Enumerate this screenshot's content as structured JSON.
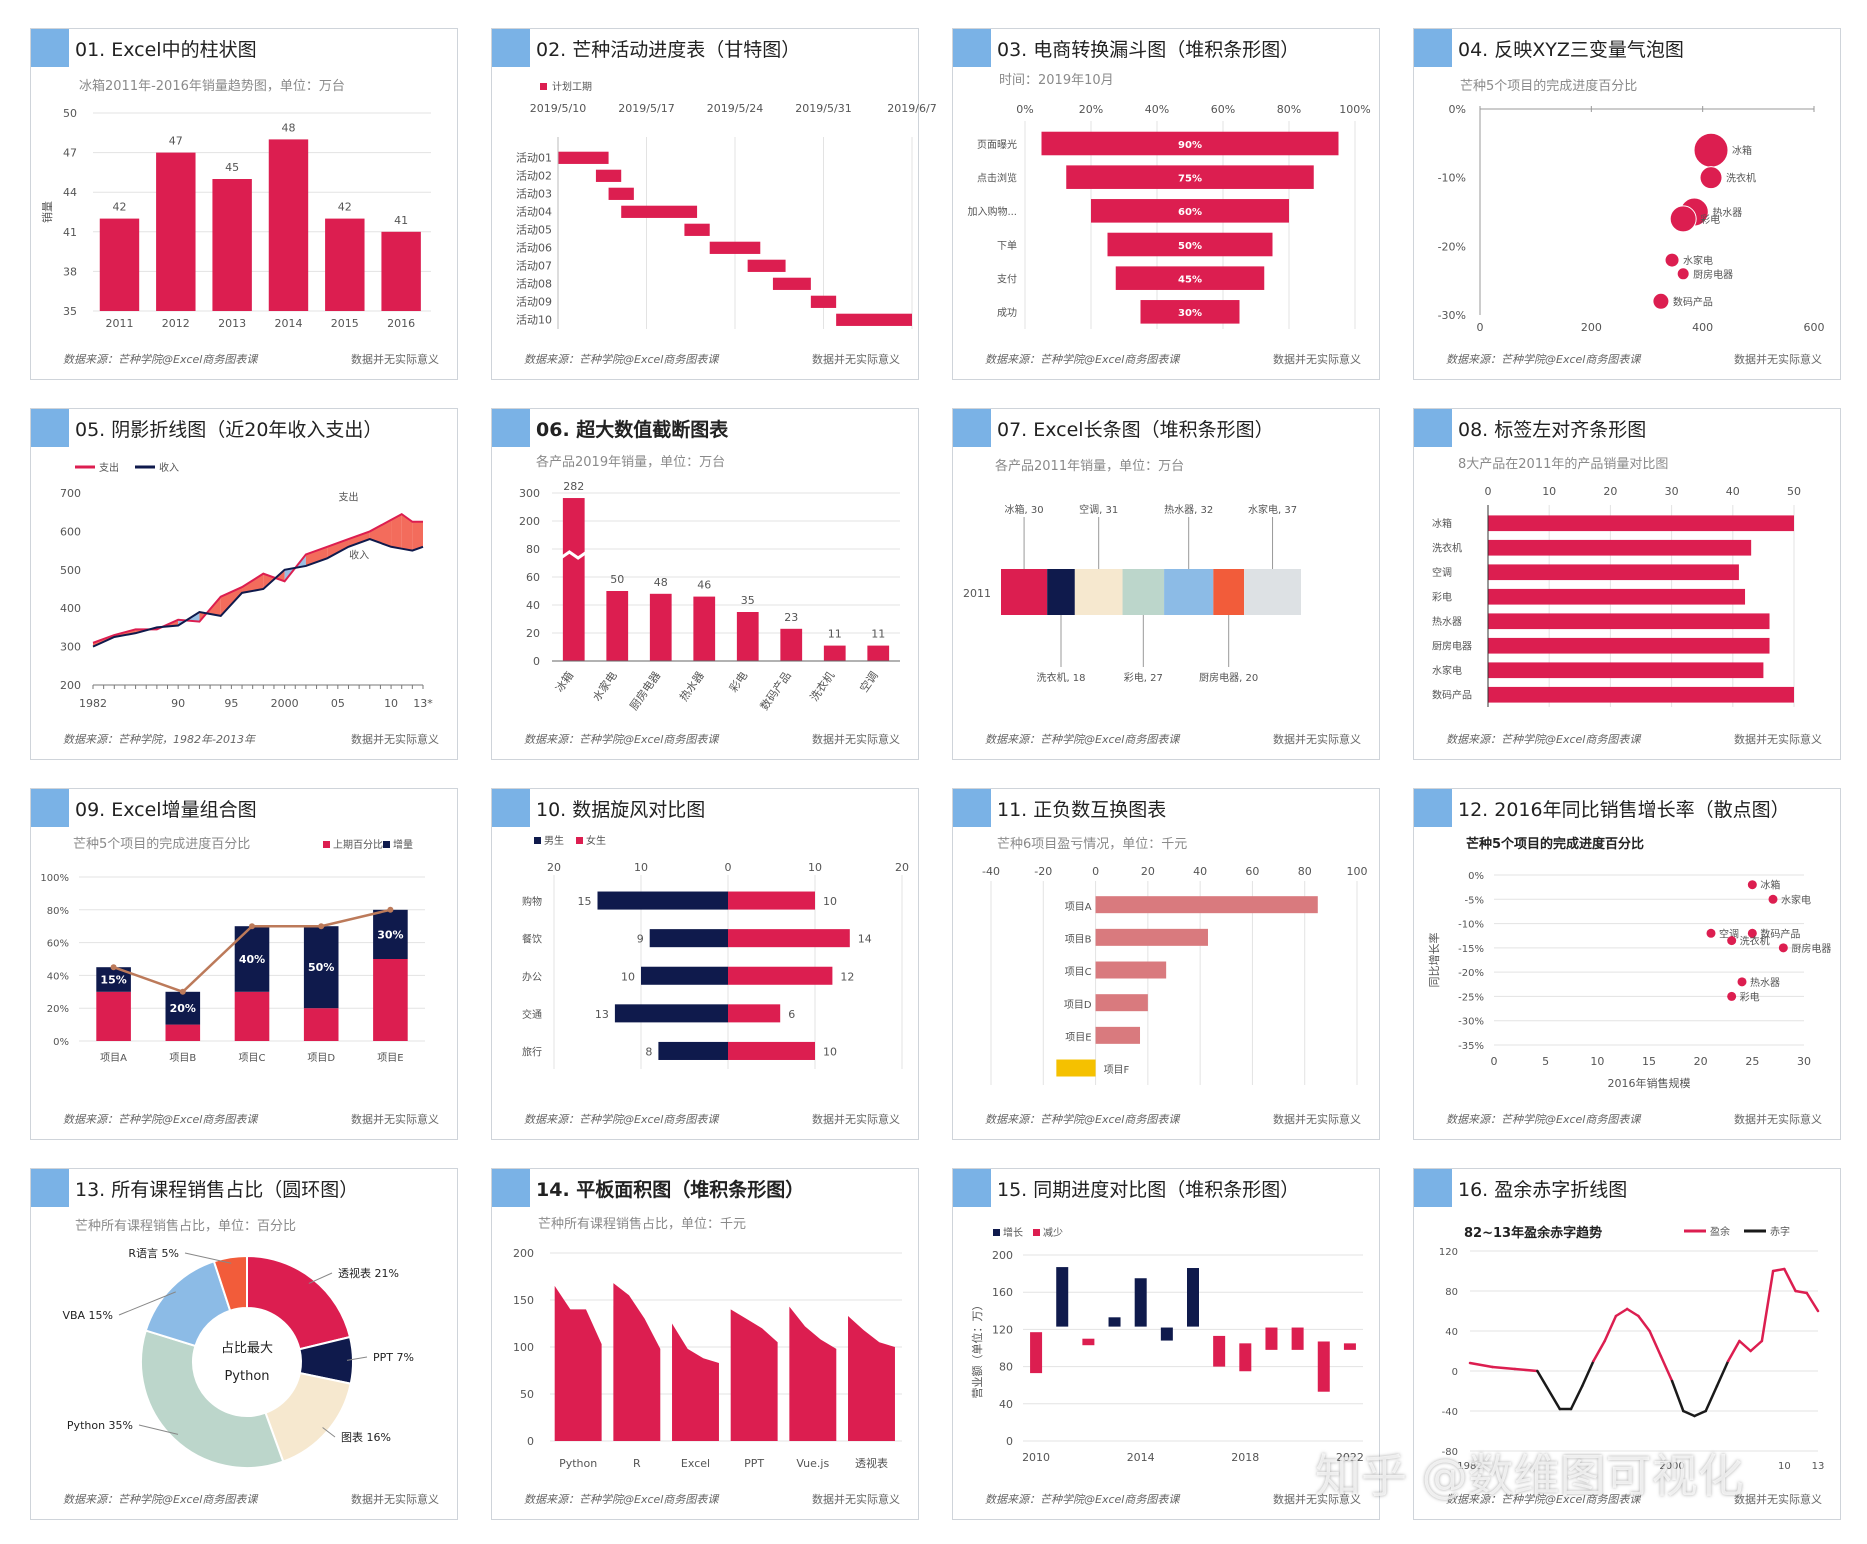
{
  "colors": {
    "red": "#dc1e50",
    "navy": "#0f1a4c",
    "blue": "#7ab2e6",
    "grid": "#e3e3e3",
    "pink": "#d97a7e",
    "gold": "#f5c100",
    "shade_red": "#f25c4a",
    "shade_blue": "#8fb8e0",
    "brown": "#bc7a5a",
    "area_red": "#dc1e50"
  },
  "watermark": "知乎 @数维图可视化",
  "panels": [
    {
      "title": "01. Excel中的柱状图",
      "subtitle": "冰箱2011年-2016年销量趋势图，单位：万台",
      "footer_left": "数据来源：芒种学院@Excel商务图表课",
      "footer_right": "数据并无实际意义"
    },
    {
      "title": "02. 芒种活动进度表（甘特图）",
      "subtitle": "",
      "footer_left": "数据来源：芒种学院@Excel商务图表课",
      "footer_right": "数据并无实际意义"
    },
    {
      "title": "03. 电商转换漏斗图（堆积条形图）",
      "subtitle": "时间：2019年10月",
      "footer_left": "数据来源：芒种学院@Excel商务图表课",
      "footer_right": "数据并无实际意义"
    },
    {
      "title": "04. 反映XYZ三变量气泡图",
      "subtitle": "芒种5个项目的完成进度百分比",
      "footer_left": "数据来源：芒种学院@Excel商务图表课",
      "footer_right": "数据并无实际意义"
    },
    {
      "title": "05. 阴影折线图（近20年收入支出）",
      "subtitle": "",
      "footer_left": "数据来源：芒种学院，1982年-2013年",
      "footer_right": "数据并无实际意义"
    },
    {
      "title": "06. 超大数值截断图表",
      "subtitle": "各产品2019年销量，单位：万台",
      "footer_left": "数据来源：芒种学院@Excel商务图表课",
      "footer_right": "数据并无实际意义"
    },
    {
      "title": "07. Excel长条图（堆积条形图）",
      "subtitle": "各产品2011年销量，单位：万台",
      "footer_left": "数据来源：芒种学院@Excel商务图表课",
      "footer_right": "数据并无实际意义"
    },
    {
      "title": "08. 标签左对齐条形图",
      "subtitle": "8大产品在2011年的产品销量对比图",
      "footer_left": "数据来源：芒种学院@Excel商务图表课",
      "footer_right": "数据并无实际意义"
    },
    {
      "title": "09. Excel增量组合图",
      "subtitle": "芒种5个项目的完成进度百分比",
      "footer_left": "数据来源：芒种学院@Excel商务图表课",
      "footer_right": "数据并无实际意义"
    },
    {
      "title": "10. 数据旋风对比图",
      "subtitle": "",
      "footer_left": "数据来源：芒种学院@Excel商务图表课",
      "footer_right": "数据并无实际意义"
    },
    {
      "title": "11. 正负数互换图表",
      "subtitle": "芒种6项目盈亏情况，单位：千元",
      "footer_left": "数据来源：芒种学院@Excel商务图表课",
      "footer_right": "数据并无实际意义"
    },
    {
      "title": "12. 2016年同比销售增长率（散点图）",
      "subtitle": "芒种5个项目的完成进度百分比",
      "footer_left": "数据来源：芒种学院@Excel商务图表课",
      "footer_right": "数据并无实际意义"
    },
    {
      "title": "13. 所有课程销售占比（圆环图）",
      "subtitle": "芒种所有课程销售占比，单位：百分比",
      "footer_left": "数据来源：芒种学院@Excel商务图表课",
      "footer_right": "数据并无实际意义"
    },
    {
      "title": "14. 平板面积图（堆积条形图）",
      "subtitle": "芒种所有课程销售占比，单位：千元",
      "footer_left": "数据来源：芒种学院@Excel商务图表课",
      "footer_right": "数据并无实际意义"
    },
    {
      "title": "15. 同期进度对比图（堆积条形图）",
      "subtitle": "",
      "footer_left": "数据来源：芒种学院@Excel商务图表课",
      "footer_right": "数据并无实际意义"
    },
    {
      "title": "16. 盈余赤字折线图",
      "subtitle": "",
      "footer_left": "数据来源：芒种学院@Excel商务图表课",
      "footer_right": "数据并无实际意义"
    }
  ],
  "chart_data": [
    {
      "type": "bar",
      "categories": [
        "2011",
        "2012",
        "2013",
        "2014",
        "2015",
        "2016"
      ],
      "values": [
        42,
        47,
        45,
        48,
        42,
        41
      ],
      "ylabel": "销量",
      "ylim": [
        35,
        50
      ],
      "yticks": [
        "35",
        "38",
        "41",
        "44",
        "47",
        "50"
      ]
    },
    {
      "type": "gantt",
      "legend": "计划工期",
      "dates": [
        "2019/5/10",
        "2019/5/17",
        "2019/5/24",
        "2019/5/31",
        "2019/6/7"
      ],
      "tasks": [
        {
          "name": "活动01",
          "start": 0,
          "days": 4
        },
        {
          "name": "活动02",
          "start": 3,
          "days": 2
        },
        {
          "name": "活动03",
          "start": 4,
          "days": 2
        },
        {
          "name": "活动04",
          "start": 5,
          "days": 6
        },
        {
          "name": "活动05",
          "start": 10,
          "days": 2
        },
        {
          "name": "活动06",
          "start": 12,
          "days": 4
        },
        {
          "name": "活动07",
          "start": 15,
          "days": 3
        },
        {
          "name": "活动08",
          "start": 17,
          "days": 3
        },
        {
          "name": "活动09",
          "start": 20,
          "days": 2
        },
        {
          "name": "活动10",
          "start": 22,
          "days": 6
        }
      ]
    },
    {
      "type": "funnel",
      "categories": [
        "页面曝光",
        "点击浏览",
        "加入购物...",
        "下单",
        "支付",
        "成功"
      ],
      "values": [
        90,
        75,
        60,
        50,
        45,
        30
      ],
      "labels": [
        "90%",
        "75%",
        "60%",
        "50%",
        "45%",
        "30%"
      ],
      "xticks": [
        "0%",
        "20%",
        "40%",
        "60%",
        "80%",
        "100%"
      ]
    },
    {
      "type": "bubble",
      "xticks": [
        "0",
        "200",
        "400",
        "600"
      ],
      "yticks": [
        "0%",
        "-10%",
        "-20%",
        "-30%"
      ],
      "points": [
        {
          "name": "冰箱",
          "x": 415,
          "y": -6,
          "r": 17
        },
        {
          "name": "洗衣机",
          "x": 415,
          "y": -10,
          "r": 11
        },
        {
          "name": "热水器",
          "x": 385,
          "y": -15,
          "r": 14
        },
        {
          "name": "彩电",
          "x": 365,
          "y": -16,
          "r": 13
        },
        {
          "name": "水家电",
          "x": 345,
          "y": -22,
          "r": 7
        },
        {
          "name": "厨房电器",
          "x": 365,
          "y": -24,
          "r": 6
        },
        {
          "name": "数码产品",
          "x": 325,
          "y": -28,
          "r": 8
        }
      ]
    },
    {
      "type": "area",
      "legend": [
        "支出",
        "收入"
      ],
      "series_labels": [
        "支出",
        "收入"
      ],
      "xticks": [
        "1982",
        "90",
        "95",
        "2000",
        "05",
        "10",
        "13*"
      ],
      "ylim": [
        200,
        700
      ],
      "yticks": [
        "200",
        "300",
        "400",
        "500",
        "600",
        "700"
      ],
      "x": [
        1982,
        1984,
        1986,
        1988,
        1990,
        1992,
        1994,
        1996,
        1998,
        2000,
        2002,
        2004,
        2006,
        2008,
        2010,
        2011,
        2012,
        2013
      ],
      "series": [
        {
          "name": "支出",
          "values": [
            310,
            330,
            345,
            345,
            370,
            365,
            430,
            455,
            490,
            470,
            540,
            560,
            580,
            600,
            630,
            645,
            625,
            625
          ]
        },
        {
          "name": "收入",
          "values": [
            300,
            325,
            335,
            350,
            355,
            390,
            380,
            440,
            450,
            500,
            510,
            530,
            560,
            580,
            560,
            555,
            550,
            560
          ]
        }
      ]
    },
    {
      "type": "bar",
      "categories": [
        "冰箱",
        "水家电",
        "厨房电器",
        "热水器",
        "彩电",
        "数码产品",
        "洗衣机",
        "空调"
      ],
      "values": [
        282,
        50,
        48,
        46,
        35,
        23,
        11,
        11
      ],
      "yticks": [
        "0",
        "20",
        "40",
        "60",
        "80",
        "200",
        "300"
      ]
    },
    {
      "type": "stacked_bar",
      "category": "2011",
      "segments": [
        {
          "name": "冰箱",
          "value": 30,
          "color": "#dc1e50"
        },
        {
          "name": "洗衣机",
          "value": 18,
          "color": "#0f1a4c"
        },
        {
          "name": "空调",
          "value": 31,
          "color": "#f6e8cf"
        },
        {
          "name": "彩电",
          "value": 27,
          "color": "#bcd6cb"
        },
        {
          "name": "热水器",
          "value": 32,
          "color": "#8cbbe6"
        },
        {
          "name": "厨房电器",
          "value": 20,
          "color": "#f25c3a"
        },
        {
          "name": "水家电",
          "value": 37,
          "color": "#dde1e4"
        }
      ],
      "top_labels": [
        "冰箱, 30",
        "空调, 31",
        "热水器, 32",
        "水家电, 37"
      ],
      "bottom_labels": [
        "洗衣机, 18",
        "彩电, 27",
        "厨房电器, 20"
      ]
    },
    {
      "type": "bar",
      "orientation": "horizontal",
      "categories": [
        "冰箱",
        "洗衣机",
        "空调",
        "彩电",
        "热水器",
        "厨房电器",
        "水家电",
        "数码产品"
      ],
      "values": [
        50,
        43,
        41,
        42,
        46,
        46,
        45,
        50
      ],
      "xticks": [
        "0",
        "10",
        "20",
        "30",
        "40",
        "50"
      ]
    },
    {
      "type": "combo",
      "legend": [
        "上期百分比",
        "增量"
      ],
      "categories": [
        "项目A",
        "项目B",
        "项目C",
        "项目D",
        "项目E"
      ],
      "base": [
        30,
        10,
        30,
        20,
        50
      ],
      "increment": [
        15,
        20,
        40,
        50,
        30
      ],
      "inc_labels": [
        "15%",
        "20%",
        "40%",
        "50%",
        "30%"
      ],
      "yticks": [
        "0%",
        "20%",
        "40%",
        "60%",
        "80%",
        "100%"
      ]
    },
    {
      "type": "butterfly",
      "legend": [
        "男生",
        "女生"
      ],
      "categories": [
        "购物",
        "餐饮",
        "办公",
        "交通",
        "旅行"
      ],
      "male": [
        15,
        9,
        10,
        13,
        8
      ],
      "female": [
        10,
        14,
        12,
        6,
        10
      ],
      "xticks": [
        "20",
        "10",
        "0",
        "10",
        "20"
      ]
    },
    {
      "type": "bar",
      "orientation": "horizontal",
      "categories": [
        "项目A",
        "项目B",
        "项目C",
        "项目D",
        "项目E",
        "项目F"
      ],
      "values": [
        85,
        43,
        27,
        20,
        17,
        -15
      ],
      "xticks": [
        "-40",
        "-20",
        "0",
        "20",
        "40",
        "60",
        "80",
        "100"
      ]
    },
    {
      "type": "scatter",
      "xlabel": "2016年销售规模",
      "ylabel": "同比增长率",
      "xticks": [
        "0",
        "5",
        "10",
        "15",
        "20",
        "25",
        "30"
      ],
      "yticks": [
        "0%",
        "-5%",
        "-10%",
        "-15%",
        "-20%",
        "-25%",
        "-30%",
        "-35%"
      ],
      "points": [
        {
          "name": "冰箱",
          "x": 25,
          "y": -2
        },
        {
          "name": "水家电",
          "x": 27,
          "y": -5
        },
        {
          "name": "空调",
          "x": 21,
          "y": -12
        },
        {
          "name": "数码产品",
          "x": 25,
          "y": -12
        },
        {
          "name": "洗衣机",
          "x": 23,
          "y": -13.5
        },
        {
          "name": "厨房电器",
          "x": 28,
          "y": -15
        },
        {
          "name": "热水器",
          "x": 24,
          "y": -22
        },
        {
          "name": "彩电",
          "x": 23,
          "y": -25
        }
      ]
    },
    {
      "type": "pie",
      "center_label": [
        "占比最大",
        "Python"
      ],
      "slices": [
        {
          "name": "透视表",
          "value": 21,
          "label": "透视表 21%",
          "color": "#dc1e50"
        },
        {
          "name": "PPT",
          "value": 7,
          "label": "PPT 7%",
          "color": "#0f1a4c"
        },
        {
          "name": "图表",
          "value": 16,
          "label": "图表 16%",
          "color": "#f6e8cf"
        },
        {
          "name": "Python",
          "value": 35,
          "label": "Python 35%",
          "color": "#bcd6cb"
        },
        {
          "name": "VBA",
          "value": 15,
          "label": "VBA 15%",
          "color": "#8cbbe6"
        },
        {
          "name": "R语言",
          "value": 5,
          "label": "R语言 5%",
          "color": "#f25c3a"
        }
      ]
    },
    {
      "type": "area",
      "categories": [
        "Python",
        "R",
        "Excel",
        "PPT",
        "Vue.js",
        "透视表"
      ],
      "yticks": [
        "0",
        "50",
        "100",
        "150",
        "200"
      ],
      "series": [
        [
          165,
          140,
          140,
          103
        ],
        [
          168,
          155,
          130,
          98
        ],
        [
          125,
          98,
          88,
          83
        ],
        [
          140,
          130,
          120,
          105
        ],
        [
          143,
          122,
          108,
          98
        ],
        [
          133,
          118,
          105,
          100
        ]
      ]
    },
    {
      "type": "bar",
      "legend": [
        "增长",
        "减少"
      ],
      "ylabel": "营业额（单位：万）",
      "xticks": [
        "2010",
        "2014",
        "2018",
        "2022"
      ],
      "yticks": [
        "0",
        "40",
        "80",
        "120",
        "160",
        "200"
      ],
      "bars": [
        {
          "x": 2010,
          "low": 73,
          "high": 117,
          "kind": "dec"
        },
        {
          "x": 2011,
          "low": 123,
          "high": 187,
          "kind": "inc"
        },
        {
          "x": 2012,
          "low": 103,
          "high": 110,
          "kind": "dec"
        },
        {
          "x": 2013,
          "low": 123,
          "high": 133,
          "kind": "inc"
        },
        {
          "x": 2014,
          "low": 123,
          "high": 175,
          "kind": "inc"
        },
        {
          "x": 2015,
          "low": 108,
          "high": 122,
          "kind": "inc"
        },
        {
          "x": 2016,
          "low": 123,
          "high": 186,
          "kind": "inc"
        },
        {
          "x": 2017,
          "low": 80,
          "high": 113,
          "kind": "dec"
        },
        {
          "x": 2018,
          "low": 75,
          "high": 105,
          "kind": "dec"
        },
        {
          "x": 2019,
          "low": 98,
          "high": 122,
          "kind": "dec"
        },
        {
          "x": 2020,
          "low": 98,
          "high": 122,
          "kind": "dec"
        },
        {
          "x": 2021,
          "low": 53,
          "high": 107,
          "kind": "dec"
        },
        {
          "x": 2022,
          "low": 98,
          "high": 105,
          "kind": "dec"
        }
      ]
    },
    {
      "type": "line",
      "title": "82~13年盈余赤字趋势",
      "legend": [
        "盈余",
        "赤字"
      ],
      "yticks": [
        "-80",
        "-40",
        "0",
        "40",
        "80",
        "120"
      ],
      "xticks": [
        "1982",
        "2000",
        "10",
        "13"
      ],
      "x": [
        1982,
        1984,
        1986,
        1988,
        1990,
        1991,
        1992,
        1993,
        1994,
        1995,
        1996,
        1997,
        1998,
        1999,
        2000,
        2001,
        2002,
        2003,
        2004,
        2005,
        2006,
        2007,
        2008,
        2009,
        2010,
        2011,
        2012,
        2013
      ],
      "values": [
        8,
        4,
        2,
        0,
        -38,
        -38,
        -15,
        10,
        30,
        55,
        62,
        55,
        40,
        15,
        -10,
        -40,
        -45,
        -40,
        -15,
        10,
        30,
        20,
        30,
        100,
        102,
        80,
        78,
        60
      ]
    }
  ]
}
